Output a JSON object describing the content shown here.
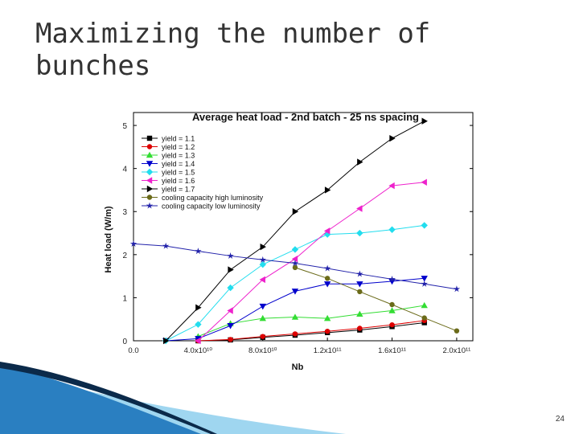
{
  "slide": {
    "title": "Maximizing the number of bunches",
    "page_number": "24",
    "colors": {
      "deco_dark": "#0b2a4a",
      "deco_blue": "#2a7fc1",
      "deco_light": "#9fd6f0"
    }
  },
  "chart_data": {
    "type": "line",
    "title": "Average heat load - 2nd batch - 25 ns spacing",
    "xlabel": "Nb",
    "ylabel": "Heat load (W/m)",
    "xlim": [
      0,
      210000000000.0
    ],
    "ylim": [
      0,
      5.3
    ],
    "x_ticks": [
      {
        "v": 0,
        "label": "0.0"
      },
      {
        "v": 40000000000.0,
        "label": "4.0x10¹⁰"
      },
      {
        "v": 80000000000.0,
        "label": "8.0x10¹⁰"
      },
      {
        "v": 120000000000.0,
        "label": "1.2x10¹¹"
      },
      {
        "v": 160000000000.0,
        "label": "1.6x10¹¹"
      },
      {
        "v": 200000000000.0,
        "label": "2.0x10¹¹"
      }
    ],
    "y_ticks": [
      0,
      1,
      2,
      3,
      4,
      5
    ],
    "legend_position": "top-left",
    "series": [
      {
        "name": "yield = 1.1",
        "color": "#000000",
        "marker": "square",
        "x": [
          40000000000.0,
          60000000000.0,
          80000000000.0,
          100000000000.0,
          120000000000.0,
          140000000000.0,
          160000000000.0,
          180000000000.0
        ],
        "y": [
          0,
          0.02,
          0.08,
          0.13,
          0.19,
          0.25,
          0.33,
          0.42
        ]
      },
      {
        "name": "yield = 1.2",
        "color": "#dd0000",
        "marker": "circle",
        "x": [
          40000000000.0,
          60000000000.0,
          80000000000.0,
          100000000000.0,
          120000000000.0,
          140000000000.0,
          160000000000.0,
          180000000000.0
        ],
        "y": [
          0,
          0.03,
          0.1,
          0.16,
          0.22,
          0.29,
          0.37,
          0.47
        ]
      },
      {
        "name": "yield = 1.3",
        "color": "#33dd33",
        "marker": "triangle-up",
        "x": [
          40000000000.0,
          60000000000.0,
          80000000000.0,
          100000000000.0,
          120000000000.0,
          140000000000.0,
          160000000000.0,
          180000000000.0
        ],
        "y": [
          0.1,
          0.4,
          0.52,
          0.55,
          0.52,
          0.62,
          0.7,
          0.82
        ]
      },
      {
        "name": "yield = 1.4",
        "color": "#0000cc",
        "marker": "triangle-down",
        "x": [
          20000000000.0,
          40000000000.0,
          60000000000.0,
          80000000000.0,
          100000000000.0,
          120000000000.0,
          140000000000.0,
          160000000000.0,
          180000000000.0
        ],
        "y": [
          0,
          0.05,
          0.35,
          0.8,
          1.15,
          1.32,
          1.32,
          1.38,
          1.45
        ]
      },
      {
        "name": "yield = 1.5",
        "color": "#22ddee",
        "marker": "diamond",
        "x": [
          20000000000.0,
          40000000000.0,
          60000000000.0,
          80000000000.0,
          100000000000.0,
          120000000000.0,
          140000000000.0,
          160000000000.0,
          180000000000.0
        ],
        "y": [
          0,
          0.38,
          1.23,
          1.77,
          2.12,
          2.47,
          2.5,
          2.58,
          2.68
        ]
      },
      {
        "name": "yield = 1.6",
        "color": "#ee22cc",
        "marker": "triangle-left",
        "x": [
          40000000000.0,
          60000000000.0,
          80000000000.0,
          100000000000.0,
          120000000000.0,
          140000000000.0,
          160000000000.0,
          180000000000.0
        ],
        "y": [
          0,
          0.7,
          1.42,
          1.9,
          2.55,
          3.07,
          3.6,
          3.68
        ]
      },
      {
        "name": "yield = 1.7",
        "color": "#000000",
        "marker": "triangle-right",
        "x": [
          20000000000.0,
          40000000000.0,
          60000000000.0,
          80000000000.0,
          100000000000.0,
          120000000000.0,
          140000000000.0,
          160000000000.0,
          180000000000.0
        ],
        "y": [
          0,
          0.77,
          1.65,
          2.18,
          3.0,
          3.5,
          4.15,
          4.7,
          5.1
        ]
      },
      {
        "name": "cooling capacity high luminosity",
        "color": "#6b6b1a",
        "marker": "circle",
        "x": [
          100000000000.0,
          120000000000.0,
          140000000000.0,
          160000000000.0,
          180000000000.0,
          200000000000.0
        ],
        "y": [
          1.7,
          1.45,
          1.14,
          0.84,
          0.53,
          0.23
        ]
      },
      {
        "name": "cooling capacity low luminosity",
        "color": "#2222aa",
        "marker": "star",
        "x": [
          0,
          20000000000.0,
          40000000000.0,
          60000000000.0,
          80000000000.0,
          100000000000.0,
          120000000000.0,
          140000000000.0,
          160000000000.0,
          180000000000.0,
          200000000000.0
        ],
        "y": [
          2.25,
          2.2,
          2.08,
          1.97,
          1.88,
          1.8,
          1.68,
          1.55,
          1.43,
          1.32,
          1.2
        ]
      }
    ]
  }
}
